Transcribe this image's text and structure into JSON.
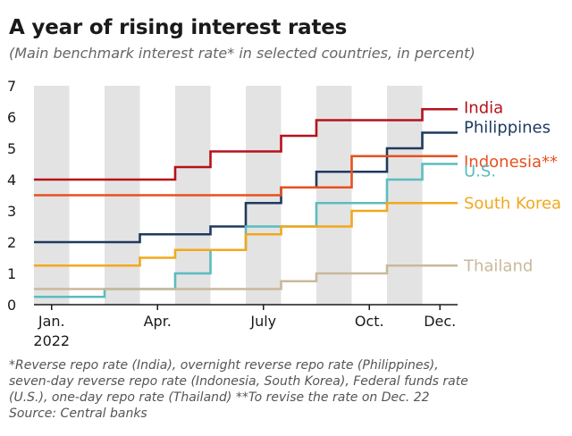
{
  "title": "A year of rising interest rates",
  "subtitle": "(Main benchmark interest rate* in selected countries, in percent)",
  "footnotes": [
    "*Reverse repo rate (India), overnight reverse repo rate (Philippines),",
    "seven-day reverse repo rate (Indonesia, South Korea), Federal funds rate",
    "(U.S.), one-day repo rate (Thailand)  **To revise the rate on Dec. 22",
    "Source: Central banks"
  ],
  "chart_data": {
    "type": "line",
    "step": true,
    "xlim": [
      0,
      12
    ],
    "ylim": [
      0,
      7
    ],
    "yticks": [
      0,
      1,
      2,
      3,
      4,
      5,
      6,
      7
    ],
    "x_ticks": [
      {
        "x": 0.5,
        "label": "Jan.",
        "label2": "2022"
      },
      {
        "x": 3.5,
        "label": "Apr.",
        "label2": ""
      },
      {
        "x": 6.5,
        "label": "July",
        "label2": ""
      },
      {
        "x": 9.5,
        "label": "Oct.",
        "label2": ""
      },
      {
        "x": 11.5,
        "label": "Dec.",
        "label2": ""
      }
    ],
    "shaded_months": [
      0,
      2,
      4,
      6,
      8,
      10
    ],
    "grid": false,
    "series": [
      {
        "name": "India",
        "color": "#b5121b",
        "points": [
          [
            0,
            4.0
          ],
          [
            4,
            4.4
          ],
          [
            5,
            4.9
          ],
          [
            7,
            5.4
          ],
          [
            8,
            5.9
          ],
          [
            11,
            6.25
          ],
          [
            12,
            6.25
          ]
        ]
      },
      {
        "name": "Philippines",
        "color": "#1f3a5f",
        "points": [
          [
            0,
            2.0
          ],
          [
            3,
            2.25
          ],
          [
            5,
            2.5
          ],
          [
            6,
            3.25
          ],
          [
            7,
            3.75
          ],
          [
            8,
            4.25
          ],
          [
            10,
            5.0
          ],
          [
            11,
            5.5
          ],
          [
            12,
            5.5
          ]
        ]
      },
      {
        "name": "Indonesia**",
        "color": "#e8501e",
        "points": [
          [
            0,
            3.5
          ],
          [
            7,
            3.75
          ],
          [
            9,
            4.75
          ],
          [
            12,
            4.75
          ]
        ]
      },
      {
        "name": "U.S.",
        "color": "#5bbcbf",
        "points": [
          [
            0,
            0.25
          ],
          [
            2,
            0.5
          ],
          [
            4,
            1.0
          ],
          [
            5,
            1.75
          ],
          [
            6,
            2.5
          ],
          [
            8,
            3.25
          ],
          [
            10,
            4.0
          ],
          [
            11,
            4.5
          ],
          [
            12,
            4.5
          ]
        ]
      },
      {
        "name": "South Korea",
        "color": "#f2a81d",
        "points": [
          [
            0,
            1.25
          ],
          [
            3,
            1.5
          ],
          [
            4,
            1.75
          ],
          [
            5,
            1.75
          ],
          [
            6,
            2.25
          ],
          [
            7,
            2.5
          ],
          [
            9,
            3.0
          ],
          [
            10,
            3.25
          ],
          [
            12,
            3.25
          ]
        ]
      },
      {
        "name": "Thailand",
        "color": "#c9b99a",
        "points": [
          [
            0,
            0.5
          ],
          [
            7,
            0.75
          ],
          [
            8,
            1.0
          ],
          [
            10,
            1.25
          ],
          [
            12,
            1.25
          ]
        ]
      }
    ]
  }
}
